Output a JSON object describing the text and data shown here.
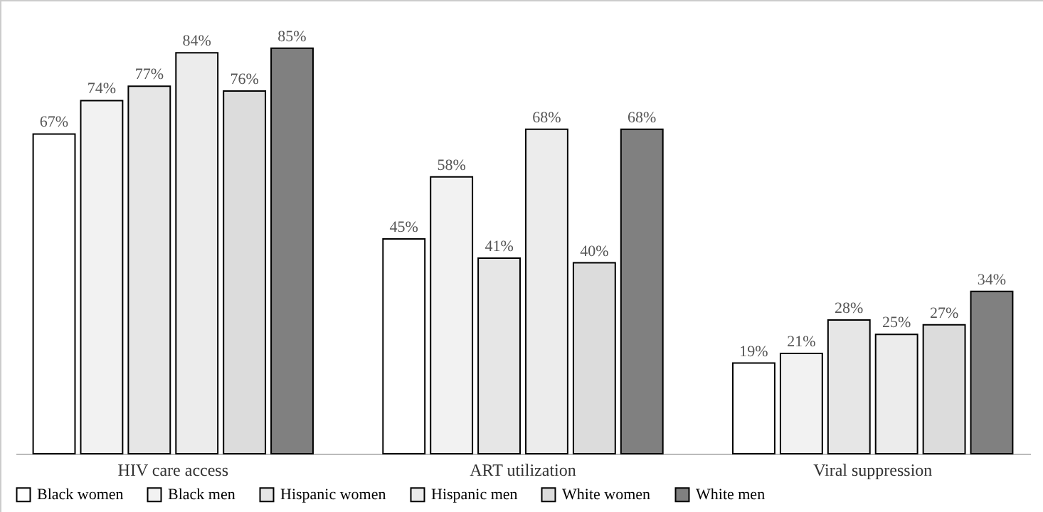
{
  "chart_data": {
    "type": "bar",
    "categories": [
      "HIV care access",
      "ART utilization",
      "Viral suppression"
    ],
    "legend": "bottom",
    "series": [
      {
        "name": "Black women",
        "color": "#ffffff",
        "values": [
          67,
          45,
          19
        ],
        "value_labels": [
          "67%",
          "45%",
          "19%"
        ]
      },
      {
        "name": "Black men",
        "color": "#f2f2f2",
        "values": [
          74,
          58,
          21
        ],
        "value_labels": [
          "74%",
          "58%",
          "21%"
        ]
      },
      {
        "name": "Hispanic women",
        "color": "#e6e6e6",
        "values": [
          77,
          41,
          28
        ],
        "value_labels": [
          "77%",
          "41%",
          "28%"
        ]
      },
      {
        "name": "Hispanic men",
        "color": "#ececec",
        "values": [
          84,
          68,
          25
        ],
        "value_labels": [
          "84%",
          "68%",
          "25%"
        ]
      },
      {
        "name": "White women",
        "color": "#dcdcdc",
        "values": [
          76,
          40,
          27
        ],
        "value_labels": [
          "76%",
          "40%",
          "27%"
        ]
      },
      {
        "name": "White men",
        "color": "#808080",
        "values": [
          85,
          68,
          34
        ],
        "value_labels": [
          "85%",
          "68%",
          "34%"
        ]
      }
    ]
  }
}
